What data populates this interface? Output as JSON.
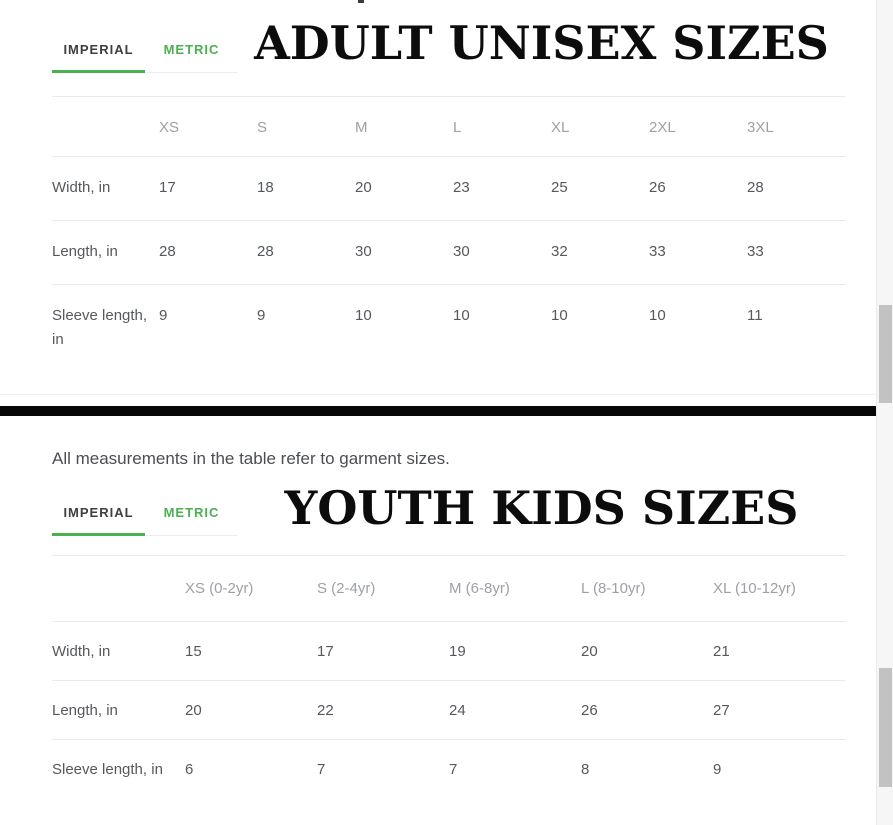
{
  "colors": {
    "accent_green": "#4caf50",
    "divider_black": "#070707",
    "header_gray": "#9da1a6",
    "body_text": "#55585c"
  },
  "note": "All measurements in the table refer to garment sizes.",
  "adult": {
    "title": "ADULT UNISEX SIZES",
    "tabs": {
      "imperial": "IMPERIAL",
      "metric": "METRIC"
    },
    "table": {
      "columns": [
        "XS",
        "S",
        "M",
        "L",
        "XL",
        "2XL",
        "3XL"
      ],
      "rows": [
        {
          "label": "Width, in",
          "values": [
            "17",
            "18",
            "20",
            "23",
            "25",
            "26",
            "28"
          ]
        },
        {
          "label": "Length, in",
          "values": [
            "28",
            "28",
            "30",
            "30",
            "32",
            "33",
            "33"
          ]
        },
        {
          "label": "Sleeve length, in",
          "values": [
            "9",
            "9",
            "10",
            "10",
            "10",
            "10",
            "11"
          ]
        }
      ]
    }
  },
  "youth": {
    "title": "YOUTH KIDS SIZES",
    "tabs": {
      "imperial": "IMPERIAL",
      "metric": "METRIC"
    },
    "table": {
      "columns": [
        "XS (0-2yr)",
        "S (2-4yr)",
        "M (6-8yr)",
        "L (8-10yr)",
        "XL (10-12yr)"
      ],
      "rows": [
        {
          "label": "Width, in",
          "values": [
            "15",
            "17",
            "19",
            "20",
            "21"
          ]
        },
        {
          "label": "Length, in",
          "values": [
            "20",
            "22",
            "24",
            "26",
            "27"
          ]
        },
        {
          "label": "Sleeve length, in",
          "values": [
            "6",
            "7",
            "7",
            "8",
            "9"
          ]
        }
      ]
    }
  }
}
